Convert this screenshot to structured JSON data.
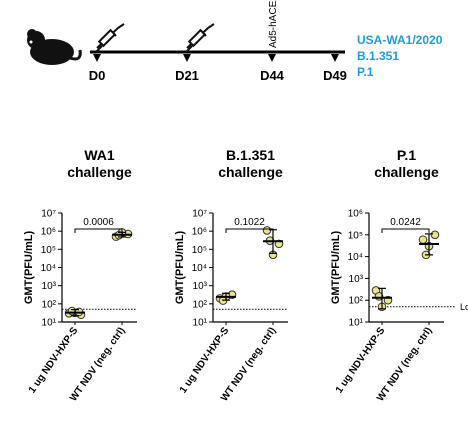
{
  "timeline": {
    "days": [
      "D0",
      "D21",
      "D44",
      "D49"
    ],
    "boost_label": "Ad5-hACE2",
    "strains": [
      "USA-WA1/2020",
      "B.1.351",
      "P.1"
    ]
  },
  "chart_data": [
    {
      "type": "scatter",
      "title": [
        "WA1",
        "challenge"
      ],
      "y_label": "GMT(PFU/mL)",
      "log_scale": true,
      "categories": [
        "1 ug NDV-HXP-S",
        "WT NDV (neg. ctrl)"
      ],
      "ylim": [
        10,
        10000000
      ],
      "yticks": [
        {
          "value": 10,
          "label": "10¹"
        },
        {
          "value": 100,
          "label": "10²"
        },
        {
          "value": 1000,
          "label": "10³"
        },
        {
          "value": 10000,
          "label": "10⁴"
        },
        {
          "value": 100000,
          "label": "10⁵"
        },
        {
          "value": 1000000,
          "label": "10⁶"
        },
        {
          "value": 10000000,
          "label": "10⁷"
        }
      ],
      "series": [
        {
          "color": "#e8e48c",
          "values": [
            30,
            25,
            32,
            40,
            36
          ],
          "mean": 33,
          "error": [
            22,
            48
          ]
        },
        {
          "color": "#e8e48c",
          "values": [
            500000,
            700000,
            850000,
            600000
          ],
          "mean": 640000,
          "error": [
            480000,
            860000
          ]
        }
      ],
      "p_value": 0.0006,
      "lod": 50
    },
    {
      "type": "scatter",
      "title": [
        "B.1.351",
        "challenge"
      ],
      "y_label": "GMT(PFU/mL)",
      "log_scale": true,
      "categories": [
        "1 ug NDV-HXP-S",
        "WT NDV (neg. ctrl)"
      ],
      "ylim": [
        10,
        10000000
      ],
      "yticks": [
        {
          "value": 10,
          "label": "10¹"
        },
        {
          "value": 100,
          "label": "10²"
        },
        {
          "value": 1000,
          "label": "10³"
        },
        {
          "value": 10000,
          "label": "10⁴"
        },
        {
          "value": 100000,
          "label": "10⁵"
        },
        {
          "value": 1000000,
          "label": "10⁶"
        },
        {
          "value": 10000000,
          "label": "10⁷"
        }
      ],
      "series": [
        {
          "color": "#e8e48c",
          "values": [
            200,
            320,
            250,
            150
          ],
          "mean": 240,
          "error": [
            160,
            380
          ]
        },
        {
          "color": "#e8e48c",
          "values": [
            1100000,
            200000,
            50000,
            300000
          ],
          "mean": 280000,
          "error": [
            60000,
            1200000
          ]
        }
      ],
      "p_value": 0.1022,
      "lod": 50
    },
    {
      "type": "scatter",
      "title": [
        "P.1",
        "challenge"
      ],
      "y_label": "GMT(PFU/mL)",
      "log_scale": true,
      "categories": [
        "1 ug NDV-HXP-S",
        "WT NDV (neg. ctrl)"
      ],
      "ylim": [
        10,
        1000000
      ],
      "yticks": [
        {
          "value": 10,
          "label": "10¹"
        },
        {
          "value": 100,
          "label": "10²"
        },
        {
          "value": 1000,
          "label": "10³"
        },
        {
          "value": 10000,
          "label": "10⁴"
        },
        {
          "value": 100000,
          "label": "10⁵"
        },
        {
          "value": 1000000,
          "label": "10⁶"
        }
      ],
      "series": [
        {
          "color": "#e8e48c",
          "values": [
            280,
            100,
            50,
            150
          ],
          "mean": 130,
          "error": [
            40,
            350
          ]
        },
        {
          "color": "#e8e48c",
          "values": [
            60000,
            100000,
            30000,
            12000
          ],
          "mean": 38000,
          "error": [
            12000,
            110000
          ]
        }
      ],
      "p_value": 0.0242,
      "lod": 50,
      "lod_label": "LoD"
    }
  ]
}
